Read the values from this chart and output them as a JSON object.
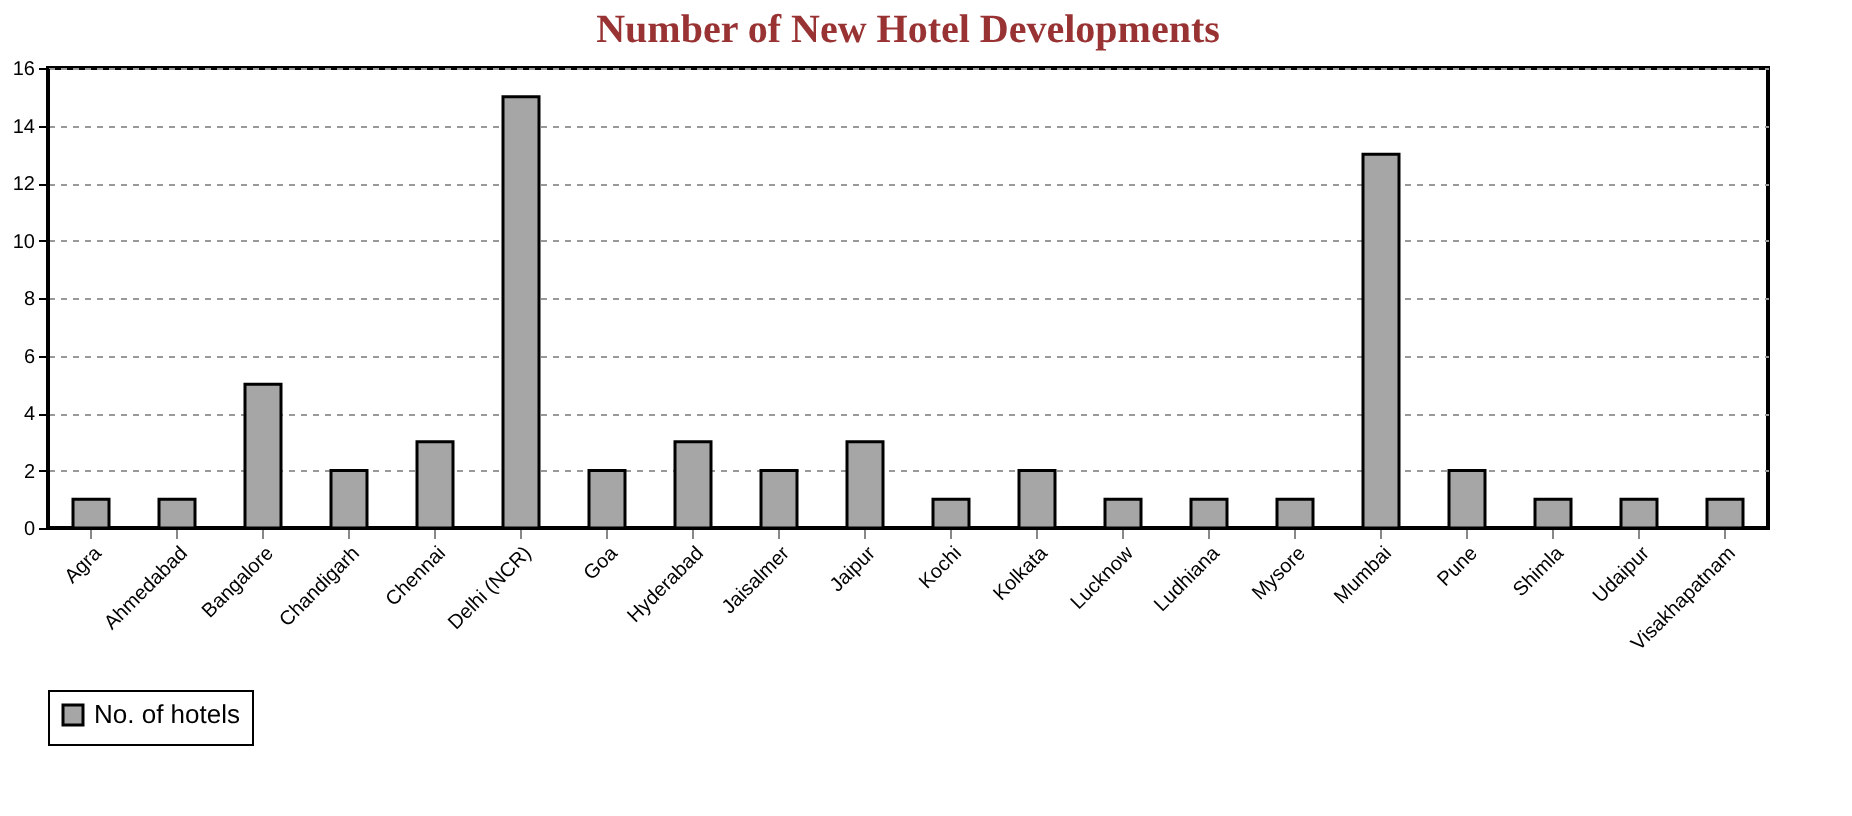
{
  "chart_data": {
    "type": "bar",
    "title": "Number of New Hotel Developments",
    "categories": [
      "Agra",
      "Ahmedabad",
      "Bangalore",
      "Chandigarh",
      "Chennai",
      "Delhi (NCR)",
      "Goa",
      "Hyderabad",
      "Jaisalmer",
      "Jaipur",
      "Kochi",
      "Kolkata",
      "Lucknow",
      "Ludhiana",
      "Mysore",
      "Mumbai",
      "Pune",
      "Shimla",
      "Udaipur",
      "Visakhapatnam"
    ],
    "series": [
      {
        "name": "No. of hotels",
        "color": "#a6a6a6",
        "values": [
          1,
          1,
          5,
          2,
          3,
          15,
          2,
          3,
          2,
          3,
          1,
          2,
          1,
          1,
          1,
          13,
          2,
          1,
          1,
          1
        ]
      }
    ],
    "ylim": [
      0,
      16
    ],
    "yticks": [
      0,
      2,
      4,
      6,
      8,
      10,
      12,
      14,
      16
    ],
    "grid": "y",
    "legend": "bottom"
  }
}
